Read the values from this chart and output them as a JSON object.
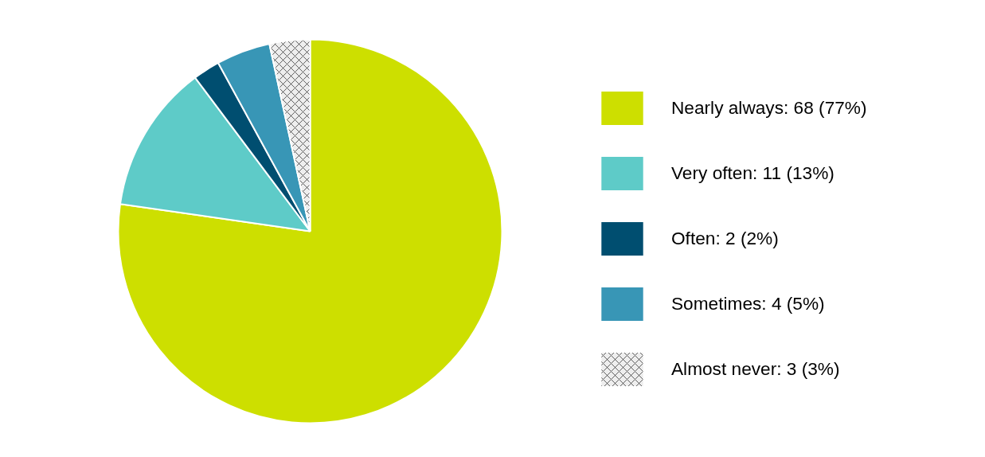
{
  "chart_data": {
    "type": "pie",
    "categories": [
      "Nearly always: 68 (77%)",
      "Very often: 11 (13%)",
      "Often: 2 (2%)",
      "Sometimes: 4 (5%)",
      "Almost never: 3 (3%)"
    ],
    "values": [
      68,
      11,
      2,
      4,
      3
    ],
    "colors": [
      "#cddf00",
      "#5ecbc8",
      "#004e70",
      "#3896b6",
      "#eeeeee"
    ],
    "legend": "right"
  }
}
